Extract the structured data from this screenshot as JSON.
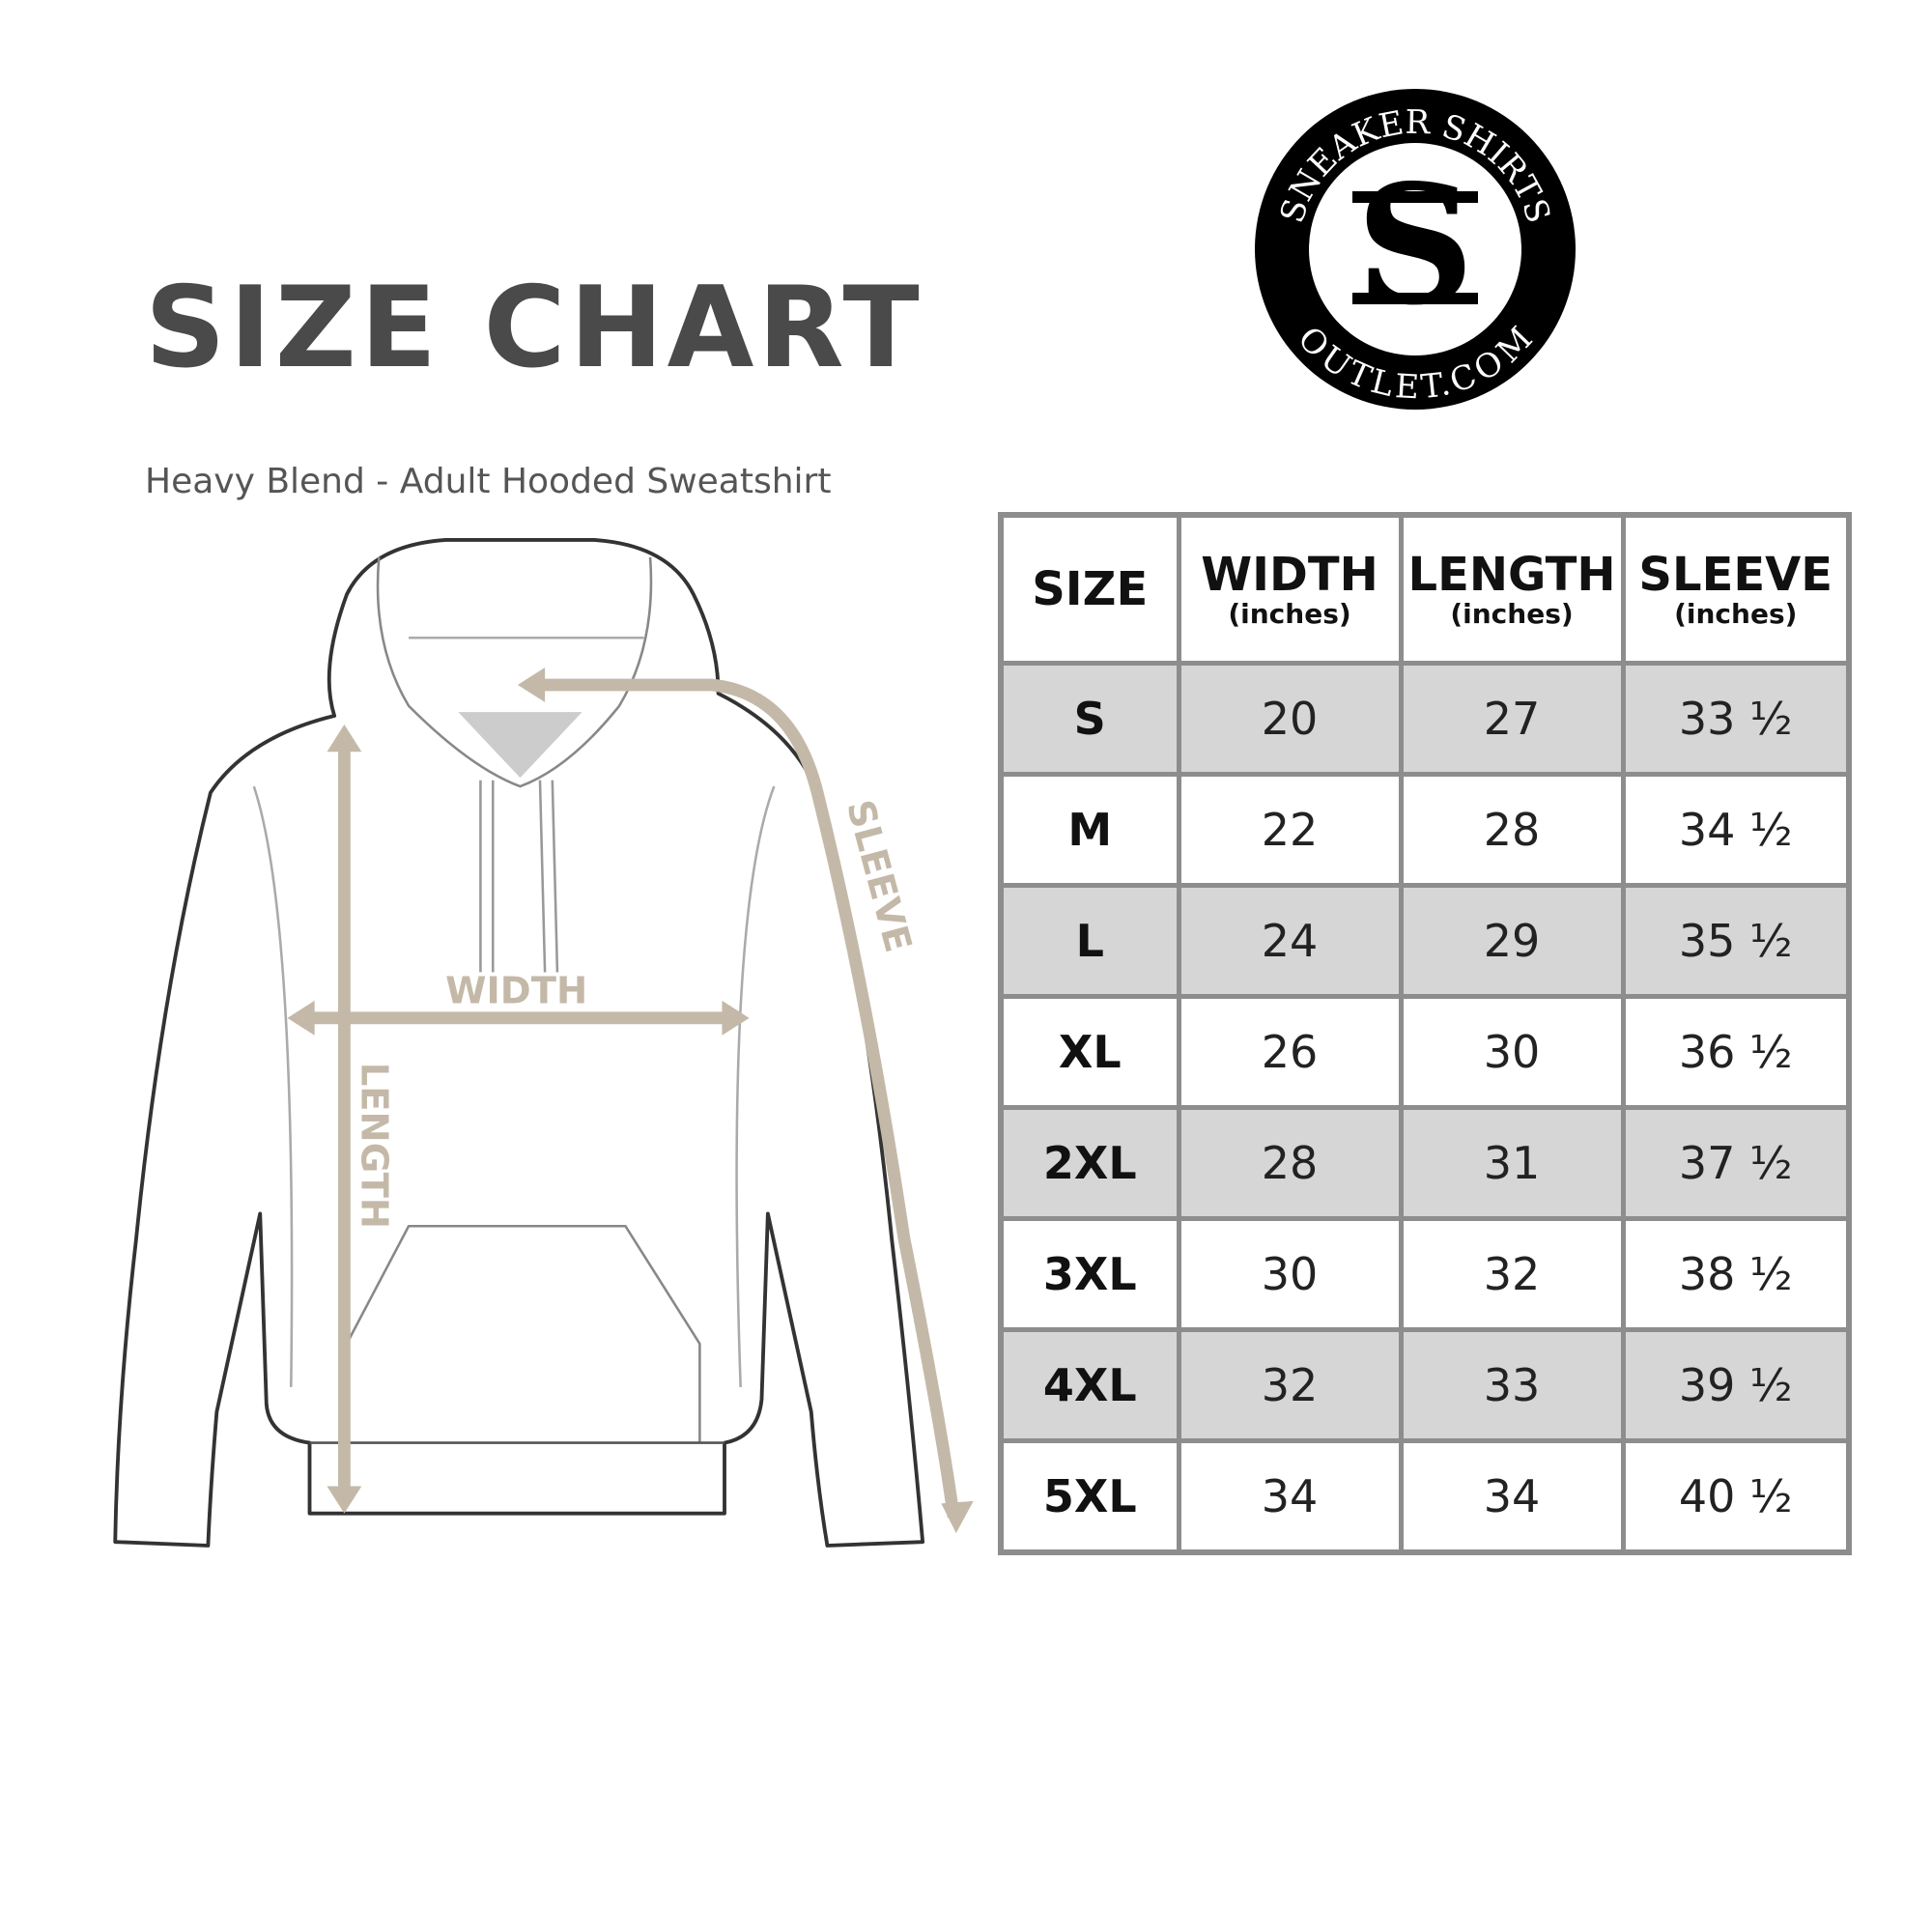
{
  "title": "SIZE CHART",
  "subtitle": "Heavy Blend - Adult Hooded Sweatshirt",
  "logo": {
    "top_text": "SNEAKER SHIRTS",
    "bottom_text": "OUTLET.COM",
    "monogram": "SS"
  },
  "diagram_labels": {
    "width": "WIDTH",
    "length": "LENGTH",
    "sleeve": "SLEEVE"
  },
  "colors": {
    "arrow": "#c4b9a8",
    "row_shade": "#d6d6d6",
    "border": "#8d8d8d"
  },
  "table": {
    "headers": [
      {
        "label": "SIZE",
        "unit": ""
      },
      {
        "label": "WIDTH",
        "unit": "(inches)"
      },
      {
        "label": "LENGTH",
        "unit": "(inches)"
      },
      {
        "label": "SLEEVE",
        "unit": "(inches)"
      }
    ],
    "rows": [
      [
        "S",
        "20",
        "27",
        "33 ½"
      ],
      [
        "M",
        "22",
        "28",
        "34 ½"
      ],
      [
        "L",
        "24",
        "29",
        "35 ½"
      ],
      [
        "XL",
        "26",
        "30",
        "36 ½"
      ],
      [
        "2XL",
        "28",
        "31",
        "37 ½"
      ],
      [
        "3XL",
        "30",
        "32",
        "38 ½"
      ],
      [
        "4XL",
        "32",
        "33",
        "39 ½"
      ],
      [
        "5XL",
        "34",
        "34",
        "40 ½"
      ]
    ]
  }
}
